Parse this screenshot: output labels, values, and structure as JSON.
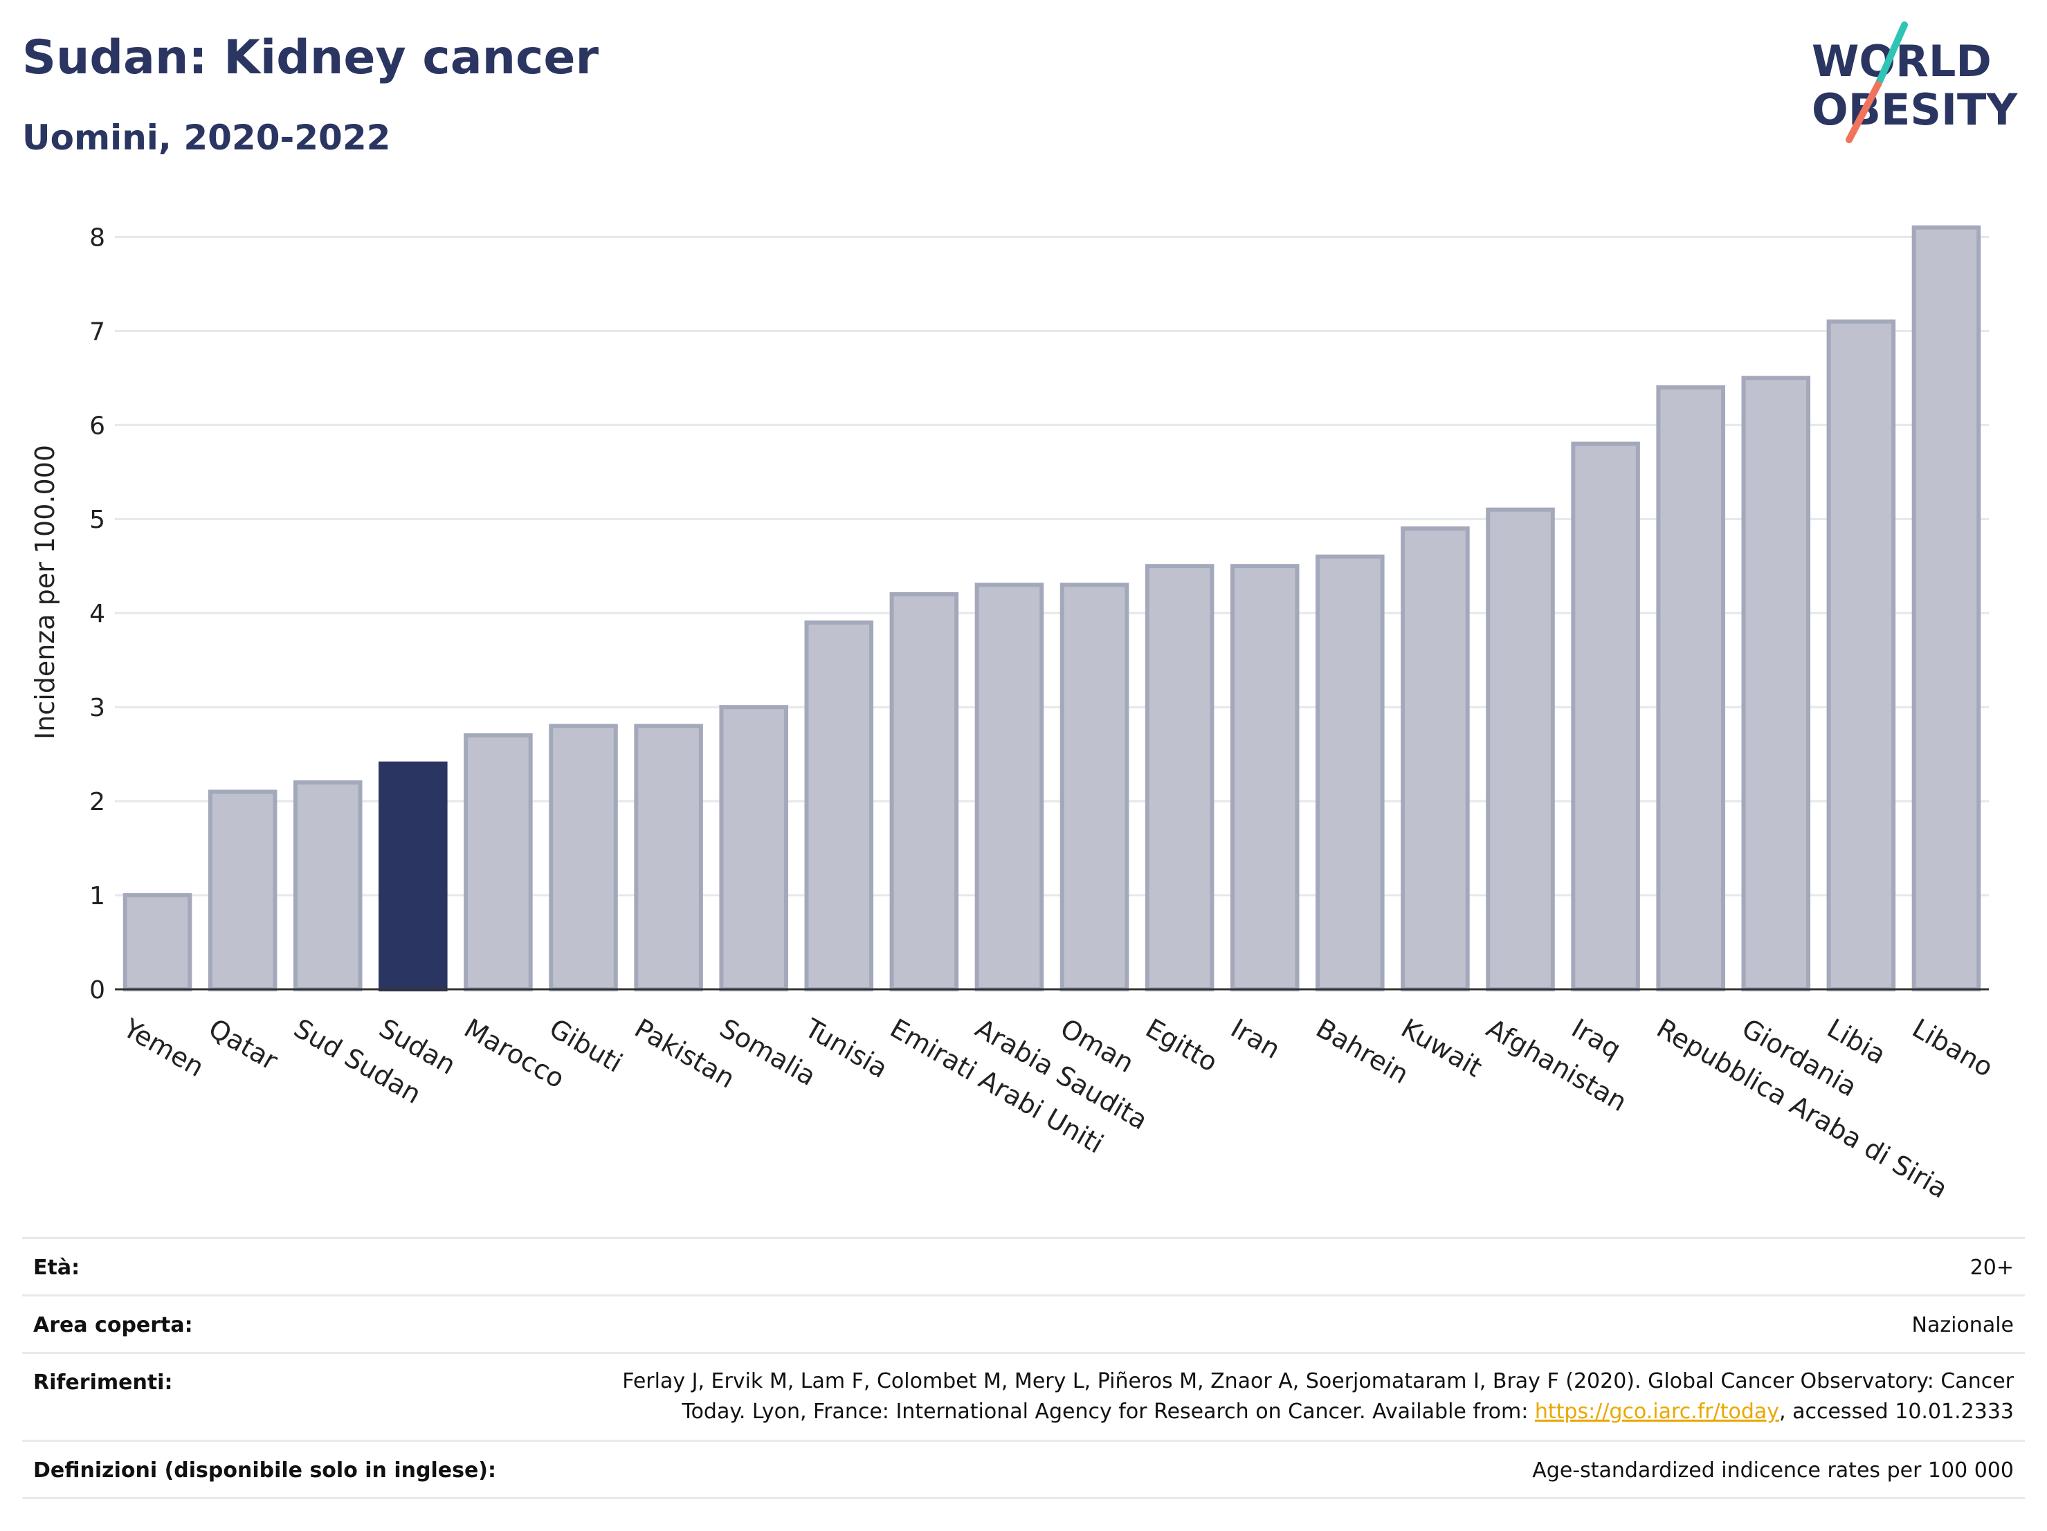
{
  "header": {
    "title": "Sudan: Kidney cancer",
    "subtitle": "Uomini, 2020-2022"
  },
  "logo": {
    "line1": "WORLD",
    "line2": "OBESITY",
    "accent_colors": [
      "#2ec4b6",
      "#f0735c"
    ],
    "text_color": "#2b3561"
  },
  "chart_data": {
    "type": "bar",
    "ylabel": "Incidenza per 100.000",
    "ylim": [
      0,
      8.4
    ],
    "yticks": [
      0,
      1,
      2,
      3,
      4,
      5,
      6,
      7,
      8
    ],
    "grid": true,
    "highlight": "Sudan",
    "colors": {
      "bar": "#bfc2ce",
      "bar_edge": "#a3a8bb",
      "highlight": "#2b3561"
    },
    "categories": [
      "Yemen",
      "Qatar",
      "Sud Sudan",
      "Sudan",
      "Marocco",
      "Gibuti",
      "Pakistan",
      "Somalia",
      "Tunisia",
      "Emirati Arabi Uniti",
      "Arabia Saudita",
      "Oman",
      "Egitto",
      "Iran",
      "Bahrein",
      "Kuwait",
      "Afghanistan",
      "Iraq",
      "Repubblica Araba di Siria",
      "Giordania",
      "Libia",
      "Libano"
    ],
    "values": [
      1.0,
      2.1,
      2.2,
      2.4,
      2.7,
      2.8,
      2.8,
      3.0,
      3.9,
      4.2,
      4.3,
      4.3,
      4.5,
      4.5,
      4.6,
      4.9,
      5.1,
      5.8,
      6.4,
      6.5,
      7.1,
      8.1
    ]
  },
  "info": {
    "age_label": "Età:",
    "age_value": "20+",
    "area_label": "Area coperta:",
    "area_value": "Nazionale",
    "ref_label": "Riferimenti:",
    "ref_text_1": "Ferlay J, Ervik M, Lam F, Colombet M, Mery L, Piñeros M, Znaor A, Soerjomataram I, Bray F (2020). Global Cancer Observatory: Cancer",
    "ref_text_2a": "Today. Lyon, France: International Agency for Research on Cancer. Available from: ",
    "ref_link": "https://gco.iarc.fr/today",
    "ref_text_2b": ", accessed 10.01.2333",
    "def_label": "Definizioni (disponibile solo in inglese):",
    "def_value": "Age-standardized indicence rates per 100 000"
  }
}
